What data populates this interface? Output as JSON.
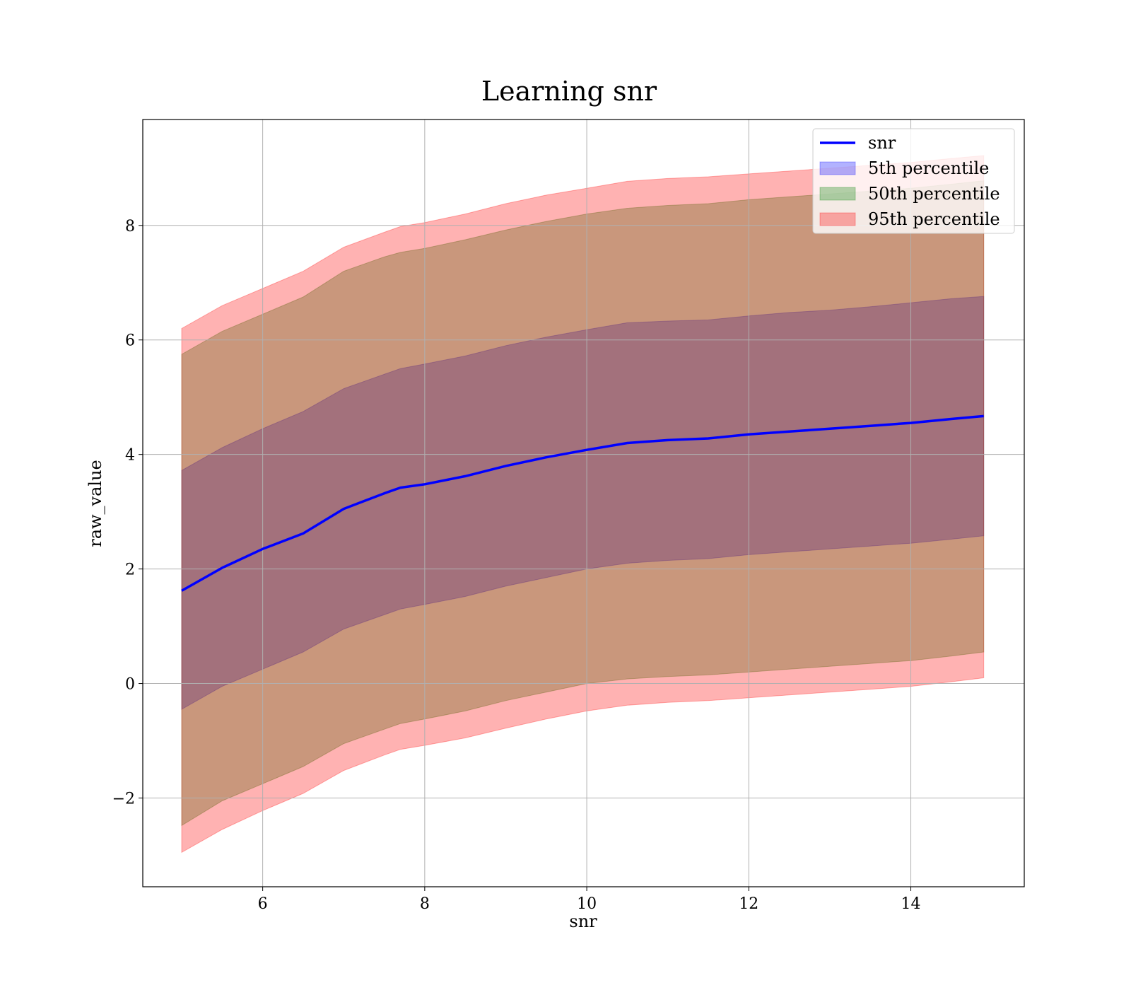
{
  "chart_data": {
    "type": "area",
    "title": "Learning snr",
    "xlabel": "snr",
    "ylabel": "raw_value",
    "xlim": [
      4.52,
      15.4
    ],
    "ylim": [
      -3.55,
      9.85
    ],
    "xticks": [
      6,
      8,
      10,
      12,
      14
    ],
    "yticks": [
      -2,
      0,
      2,
      4,
      6,
      8
    ],
    "grid": true,
    "legend_position": "upper right",
    "x": [
      5.0,
      5.5,
      6.0,
      6.5,
      7.0,
      7.5,
      7.7,
      8.0,
      8.5,
      9.0,
      9.5,
      10.0,
      10.5,
      11.0,
      11.5,
      12.0,
      12.5,
      13.0,
      13.5,
      14.0,
      14.5,
      14.9
    ],
    "series": [
      {
        "name": "snr",
        "kind": "line",
        "color": "#0000ff",
        "values": [
          1.62,
          2.02,
          2.35,
          2.62,
          3.05,
          3.32,
          3.42,
          3.48,
          3.62,
          3.8,
          3.95,
          4.08,
          4.2,
          4.25,
          4.28,
          4.35,
          4.4,
          4.45,
          4.5,
          4.55,
          4.62,
          4.67
        ]
      },
      {
        "name": "5th percentile",
        "kind": "band",
        "color": "#0000ff",
        "alpha": 0.3,
        "lower": [
          -0.45,
          -0.05,
          0.25,
          0.55,
          0.95,
          1.2,
          1.3,
          1.38,
          1.52,
          1.7,
          1.85,
          2.0,
          2.1,
          2.15,
          2.18,
          2.25,
          2.3,
          2.35,
          2.4,
          2.45,
          2.52,
          2.58
        ],
        "upper": [
          3.72,
          4.12,
          4.45,
          4.75,
          5.15,
          5.4,
          5.5,
          5.58,
          5.72,
          5.9,
          6.05,
          6.18,
          6.3,
          6.33,
          6.35,
          6.42,
          6.48,
          6.52,
          6.58,
          6.65,
          6.72,
          6.76
        ]
      },
      {
        "name": "50th percentile",
        "kind": "band",
        "color": "#008000",
        "alpha": 0.3,
        "lower": [
          -2.48,
          -2.05,
          -1.75,
          -1.45,
          -1.05,
          -0.8,
          -0.7,
          -0.62,
          -0.48,
          -0.3,
          -0.15,
          0.0,
          0.08,
          0.12,
          0.15,
          0.2,
          0.25,
          0.3,
          0.35,
          0.4,
          0.48,
          0.55
        ],
        "upper": [
          5.75,
          6.15,
          6.45,
          6.75,
          7.2,
          7.45,
          7.53,
          7.6,
          7.75,
          7.92,
          8.07,
          8.2,
          8.3,
          8.35,
          8.38,
          8.45,
          8.5,
          8.55,
          8.6,
          8.65,
          8.72,
          8.78
        ]
      },
      {
        "name": "95th percentile",
        "kind": "band",
        "color": "#ff0000",
        "alpha": 0.3,
        "lower": [
          -2.95,
          -2.55,
          -2.22,
          -1.92,
          -1.52,
          -1.25,
          -1.15,
          -1.08,
          -0.95,
          -0.78,
          -0.62,
          -0.48,
          -0.38,
          -0.33,
          -0.3,
          -0.25,
          -0.2,
          -0.15,
          -0.1,
          -0.05,
          0.03,
          0.1
        ],
        "upper": [
          6.2,
          6.6,
          6.9,
          7.2,
          7.62,
          7.88,
          7.98,
          8.05,
          8.2,
          8.38,
          8.53,
          8.65,
          8.77,
          8.82,
          8.85,
          8.9,
          8.95,
          9.0,
          9.05,
          9.1,
          9.17,
          9.22
        ]
      }
    ]
  }
}
